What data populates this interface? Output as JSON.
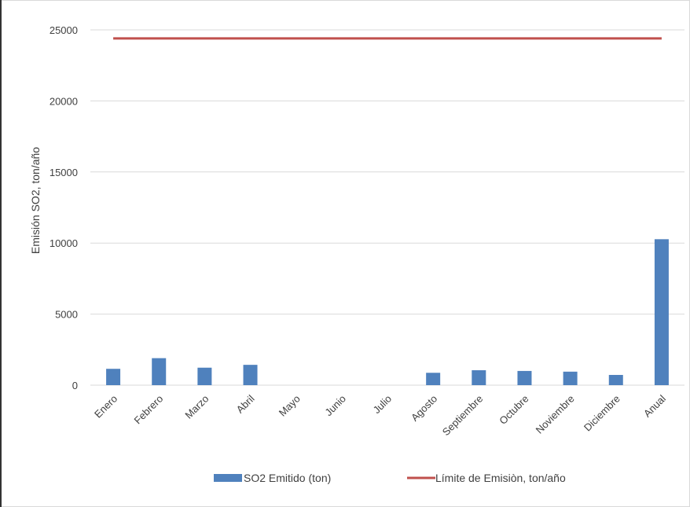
{
  "chart_data": {
    "type": "bar",
    "title": "",
    "xlabel": "",
    "ylabel": "Emisión SO2, ton/año",
    "ylim": [
      0,
      25000
    ],
    "yticks": [
      0,
      5000,
      10000,
      15000,
      20000,
      25000
    ],
    "grid": "horizontal",
    "legend_position": "bottom",
    "categories": [
      "Enero",
      "Febrero",
      "Marzo",
      "Abril",
      "Mayo",
      "Junio",
      "Julio",
      "Agosto",
      "Septiembre",
      "Octubre",
      "Noviembre",
      "Diciembre",
      "Anual"
    ],
    "series": [
      {
        "name": "SO2 Emitido (ton)",
        "type": "bar",
        "color": "#4f81bd",
        "values": [
          1150,
          1900,
          1230,
          1430,
          0,
          0,
          0,
          870,
          1050,
          1000,
          950,
          720,
          10270
        ]
      },
      {
        "name": "Límite de Emisiòn, ton/año",
        "type": "line",
        "color": "#c0504d",
        "values": [
          24400,
          24400,
          24400,
          24400,
          24400,
          24400,
          24400,
          24400,
          24400,
          24400,
          24400,
          24400,
          24400
        ]
      }
    ]
  }
}
